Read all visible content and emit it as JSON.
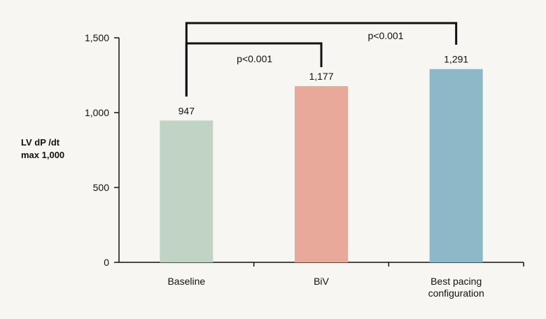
{
  "chart_data": {
    "type": "bar",
    "title": "",
    "xlabel": "",
    "ylabel_lines": [
      "LV dP /dt",
      "max 1,000"
    ],
    "ylim": [
      0,
      1500
    ],
    "yticks": [
      0,
      500,
      1000,
      1500
    ],
    "ytick_labels": [
      "0",
      "500",
      "1,000",
      "1,500"
    ],
    "categories": [
      {
        "lines": [
          "Baseline"
        ]
      },
      {
        "lines": [
          "BiV"
        ]
      },
      {
        "lines": [
          "Best pacing",
          "configuration"
        ]
      }
    ],
    "values": [
      947,
      1177,
      1291
    ],
    "value_labels": [
      "947",
      "1,177",
      "1,291"
    ],
    "colors": [
      "#c1d3c4",
      "#e8a99a",
      "#8db8c8"
    ],
    "grid": false,
    "comparisons": [
      {
        "from": 0,
        "to": 1,
        "label": "p<0.001"
      },
      {
        "from": 0,
        "to": 2,
        "label": "p<0.001"
      }
    ]
  }
}
